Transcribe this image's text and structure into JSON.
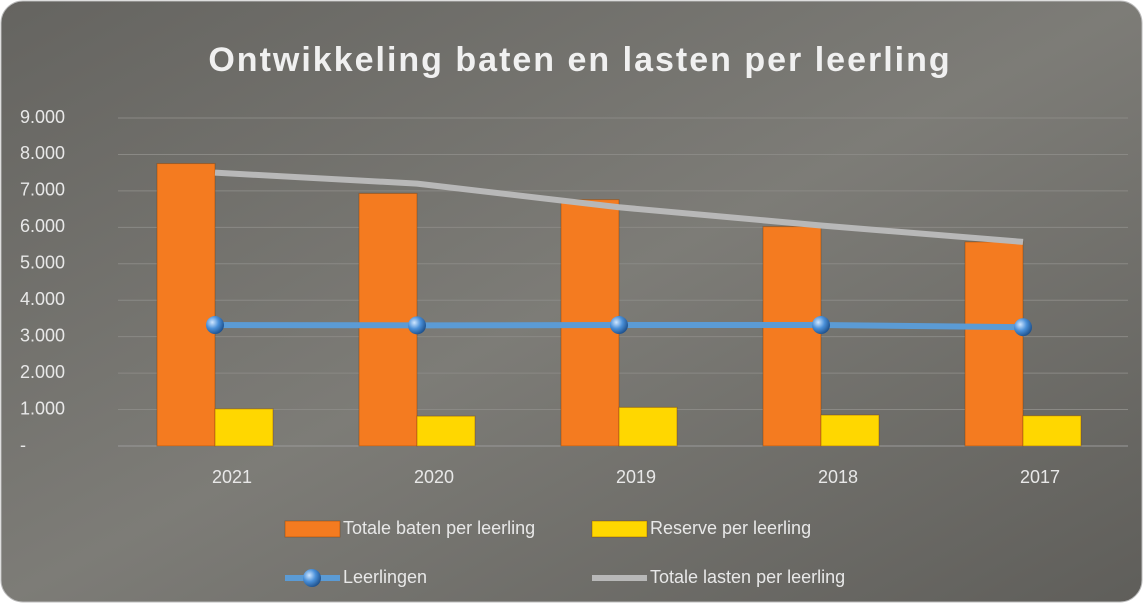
{
  "chart_data": {
    "type": "bar-line",
    "title": "Ontwikkeling baten en lasten per leerling",
    "categories": [
      "2021",
      "2020",
      "2019",
      "2018",
      "2017"
    ],
    "series": [
      {
        "name": "Totale baten per leerling",
        "color": "#f47b20",
        "kind": "bar",
        "values": [
          7750,
          6930,
          6760,
          6020,
          5600
        ]
      },
      {
        "name": "Reserve per leerling",
        "color": "#ffd700",
        "kind": "bar",
        "values": [
          1020,
          820,
          1060,
          850,
          830
        ]
      },
      {
        "name": "Leerlingen",
        "color": "#5b9bd5",
        "kind": "line-marker",
        "values": [
          3320,
          3310,
          3320,
          3320,
          3260
        ]
      },
      {
        "name": "Totale lasten per leerling",
        "color": "#b8b8b8",
        "kind": "line",
        "values": [
          7500,
          7200,
          6550,
          6050,
          5600
        ]
      }
    ],
    "ylim": [
      0,
      9000
    ],
    "yticks": [
      {
        "value": 0,
        "label": "-"
      },
      {
        "value": 1000,
        "label": "1.000"
      },
      {
        "value": 2000,
        "label": "2.000"
      },
      {
        "value": 3000,
        "label": "3.000"
      },
      {
        "value": 4000,
        "label": "4.000"
      },
      {
        "value": 5000,
        "label": "5.000"
      },
      {
        "value": 6000,
        "label": "6.000"
      },
      {
        "value": 7000,
        "label": "7.000"
      },
      {
        "value": 8000,
        "label": "8.000"
      },
      {
        "value": 9000,
        "label": "9.000"
      }
    ],
    "grid": true,
    "legend": "bottom"
  }
}
